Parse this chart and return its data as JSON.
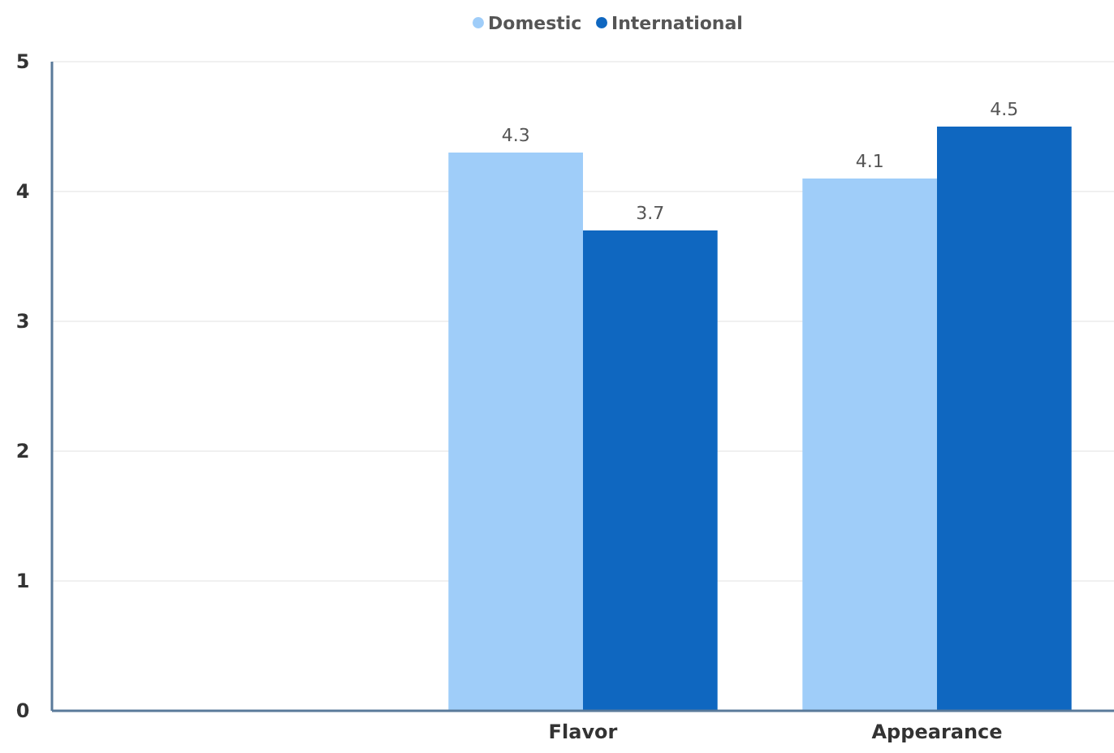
{
  "chart_data": {
    "type": "bar",
    "categories": [
      null,
      "Flavor",
      "Appearance"
    ],
    "series": [
      {
        "name": "Domestic",
        "color": "#9fcdf9",
        "values": [
          null,
          4.3,
          4.1
        ]
      },
      {
        "name": "International",
        "color": "#0f67c0",
        "values": [
          null,
          3.7,
          4.5
        ]
      }
    ],
    "ylim": [
      0,
      5
    ],
    "yticks": [
      0,
      1,
      2,
      3,
      4,
      5
    ],
    "grid": "y",
    "legend": "top",
    "data_labels": true
  }
}
